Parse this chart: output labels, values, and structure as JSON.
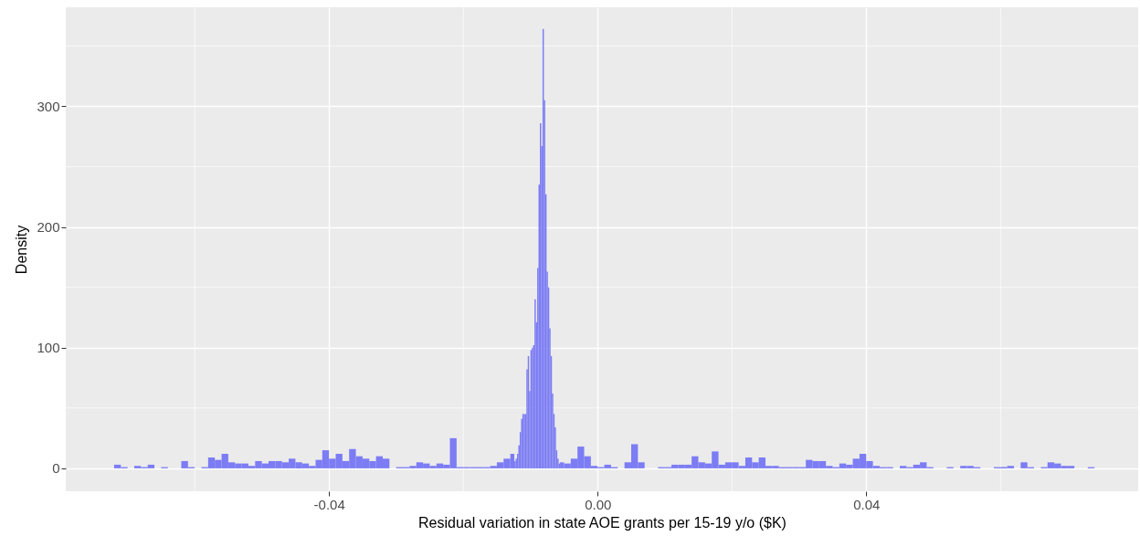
{
  "chart_data": {
    "type": "histogram",
    "xlabel": "Residual variation in state AOE grants per 15-19 y/o ($K)",
    "ylabel": "Density",
    "color": "#7676f4",
    "bins": [
      -0.072,
      -0.071,
      -0.07,
      -0.069,
      -0.068,
      -0.067,
      -0.066,
      -0.065,
      -0.064,
      -0.062,
      -0.061,
      -0.06,
      -0.059,
      -0.058,
      -0.057,
      -0.056,
      -0.055,
      -0.054,
      -0.053,
      -0.052,
      -0.051,
      -0.05,
      -0.049,
      -0.048,
      -0.047,
      -0.046,
      -0.045,
      -0.044,
      -0.043,
      -0.042,
      -0.041,
      -0.04,
      -0.039,
      -0.038,
      -0.037,
      -0.036,
      -0.035,
      -0.034,
      -0.033,
      -0.032,
      -0.031,
      -0.03,
      -0.029,
      -0.028,
      -0.027,
      -0.026,
      -0.025,
      -0.024,
      -0.023,
      -0.022,
      -0.021,
      -0.02,
      -0.019,
      -0.018,
      -0.017,
      -0.016,
      -0.015,
      -0.014,
      -0.013,
      -0.0124,
      -0.0122,
      -0.012,
      -0.0118,
      -0.0116,
      -0.0114,
      -0.0112,
      -0.011,
      -0.0108,
      -0.0106,
      -0.0104,
      -0.0102,
      -0.01,
      -0.0098,
      -0.0096,
      -0.0094,
      -0.0092,
      -0.009,
      -0.0088,
      -0.0086,
      -0.0084,
      -0.0082,
      -0.008,
      -0.0078,
      -0.0076,
      -0.0074,
      -0.0072,
      -0.007,
      -0.0068,
      -0.0066,
      -0.0064,
      -0.0062,
      -0.006,
      -0.0058,
      -0.0056,
      -0.005,
      -0.004,
      -0.003,
      -0.002,
      -0.001,
      0,
      0.001,
      0.002,
      0.003,
      0.004,
      0.005,
      0.006,
      0.007,
      0.009,
      0.01,
      0.011,
      0.012,
      0.013,
      0.014,
      0.015,
      0.016,
      0.017,
      0.018,
      0.019,
      0.02,
      0.021,
      0.022,
      0.023,
      0.024,
      0.025,
      0.026,
      0.027,
      0.028,
      0.029,
      0.03,
      0.031,
      0.032,
      0.033,
      0.034,
      0.035,
      0.036,
      0.037,
      0.038,
      0.039,
      0.04,
      0.041,
      0.042,
      0.043,
      0.044,
      0.045,
      0.046,
      0.047,
      0.048,
      0.049,
      0.05,
      0.052,
      0.053,
      0.054,
      0.055,
      0.056,
      0.057,
      0.059,
      0.06,
      0.061,
      0.062,
      0.063,
      0.064,
      0.065,
      0.066,
      0.067,
      0.068,
      0.069,
      0.07,
      0.071,
      0.073,
      0.074
    ],
    "values": [
      3,
      1,
      0,
      2,
      1,
      3,
      0,
      1,
      0,
      6,
      1,
      0,
      1,
      9,
      7,
      12,
      5,
      4,
      4,
      2,
      6,
      4,
      6,
      6,
      5,
      8,
      5,
      4,
      2,
      7,
      15,
      8,
      12,
      6,
      16,
      10,
      8,
      6,
      10,
      8,
      0,
      1,
      1,
      2,
      5,
      4,
      2,
      4,
      3,
      25,
      1,
      1,
      1,
      1,
      1,
      2,
      5,
      8,
      12,
      6,
      8,
      12,
      19,
      30,
      41,
      45,
      45,
      45,
      82,
      93,
      64,
      98,
      100,
      102,
      140,
      121,
      166,
      235,
      286,
      267,
      364,
      305,
      227,
      163,
      150,
      116,
      93,
      62,
      45,
      34,
      15,
      8,
      4,
      5,
      4,
      8,
      18,
      10,
      2,
      1,
      3,
      1,
      0,
      5,
      20,
      5,
      0,
      1,
      1,
      3,
      3,
      3,
      10,
      5,
      4,
      14,
      3,
      5,
      5,
      2,
      9,
      5,
      9,
      2,
      2,
      1,
      1,
      1,
      1,
      7,
      6,
      6,
      2,
      1,
      4,
      3,
      8,
      12,
      6,
      2,
      1,
      1,
      0,
      2,
      1,
      3,
      5,
      1,
      0,
      1,
      0,
      2,
      2,
      1,
      0,
      1,
      1,
      2,
      0,
      5,
      1,
      0,
      1,
      5,
      4,
      2,
      2,
      0,
      1
    ],
    "xlim": [
      -0.0792,
      0.0805
    ],
    "ylim": [
      -19,
      382
    ],
    "xticks": [
      -0.04,
      {
        "value": 0,
        "label": "0.00"
      },
      0.04
    ],
    "yticks": [
      0,
      100,
      200,
      300
    ],
    "grid": true
  }
}
